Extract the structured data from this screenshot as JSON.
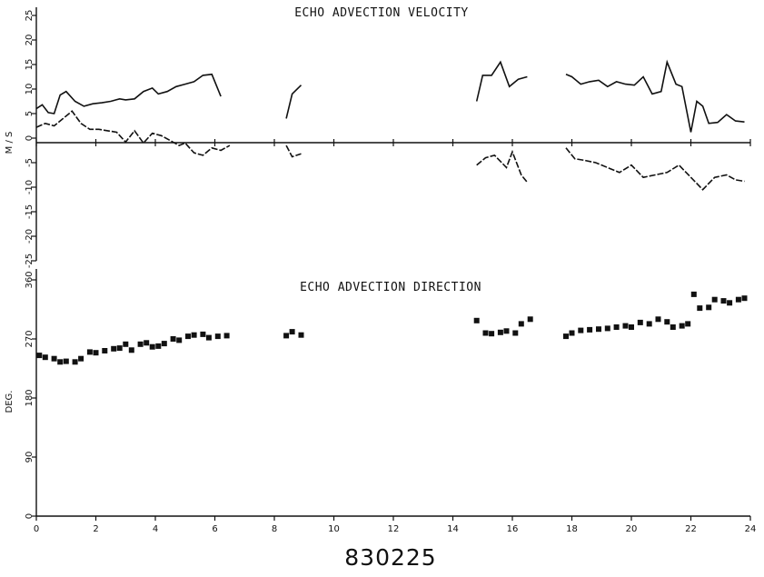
{
  "chart_data": [
    {
      "type": "line",
      "title": "ECHO ADVECTION VELOCITY",
      "xlabel": "830225",
      "ylabel": "M / S",
      "xlim": [
        0,
        24
      ],
      "ylim": [
        -25,
        25
      ],
      "x_ticks": [
        "0",
        "2",
        "4",
        "6",
        "8",
        "10",
        "12",
        "14",
        "16",
        "18",
        "20",
        "22",
        "24"
      ],
      "y_ticks": [
        "-25",
        "-20",
        "-15",
        "-10",
        "-5",
        "0",
        "5",
        "10",
        "15",
        "20",
        "25"
      ],
      "grid": false,
      "legend": "none",
      "series": [
        {
          "style": "solid",
          "segments": [
            [
              [
                0.0,
                6.0
              ],
              [
                0.2,
                6.8
              ],
              [
                0.4,
                5.2
              ],
              [
                0.6,
                5.0
              ],
              [
                0.8,
                8.8
              ],
              [
                1.0,
                9.5
              ],
              [
                1.3,
                7.5
              ],
              [
                1.6,
                6.5
              ],
              [
                1.9,
                7.0
              ],
              [
                2.2,
                7.2
              ],
              [
                2.5,
                7.5
              ],
              [
                2.8,
                8.0
              ],
              [
                3.0,
                7.8
              ],
              [
                3.3,
                8.0
              ],
              [
                3.6,
                9.5
              ],
              [
                3.9,
                10.2
              ],
              [
                4.1,
                9.0
              ],
              [
                4.4,
                9.5
              ],
              [
                4.7,
                10.5
              ],
              [
                5.0,
                11.0
              ],
              [
                5.3,
                11.5
              ],
              [
                5.6,
                12.8
              ],
              [
                5.9,
                13.0
              ],
              [
                6.2,
                8.5
              ]
            ],
            [
              [
                8.4,
                4.0
              ],
              [
                8.6,
                9.0
              ],
              [
                8.9,
                10.8
              ]
            ],
            [
              [
                14.8,
                7.5
              ],
              [
                15.0,
                12.8
              ],
              [
                15.3,
                12.8
              ],
              [
                15.6,
                15.5
              ],
              [
                15.9,
                10.5
              ],
              [
                16.2,
                12.0
              ],
              [
                16.5,
                12.5
              ]
            ],
            [
              [
                17.8,
                13.0
              ],
              [
                18.0,
                12.5
              ],
              [
                18.3,
                11.0
              ],
              [
                18.6,
                11.5
              ],
              [
                18.9,
                11.8
              ],
              [
                19.2,
                10.5
              ],
              [
                19.5,
                11.5
              ],
              [
                19.8,
                11.0
              ],
              [
                20.1,
                10.8
              ],
              [
                20.4,
                12.5
              ],
              [
                20.7,
                9.0
              ],
              [
                21.0,
                9.5
              ],
              [
                21.2,
                15.5
              ],
              [
                21.5,
                11.0
              ],
              [
                21.7,
                10.5
              ],
              [
                22.0,
                1.2
              ],
              [
                22.2,
                7.5
              ],
              [
                22.4,
                6.5
              ],
              [
                22.6,
                3.0
              ],
              [
                22.9,
                3.2
              ],
              [
                23.2,
                4.8
              ],
              [
                23.5,
                3.5
              ],
              [
                23.8,
                3.3
              ]
            ]
          ]
        },
        {
          "style": "dashed",
          "segments": [
            [
              [
                0.0,
                2.2
              ],
              [
                0.3,
                3.0
              ],
              [
                0.6,
                2.5
              ],
              [
                0.9,
                4.0
              ],
              [
                1.2,
                5.5
              ],
              [
                1.5,
                3.0
              ],
              [
                1.8,
                1.8
              ],
              [
                2.1,
                1.8
              ],
              [
                2.4,
                1.5
              ],
              [
                2.7,
                1.2
              ],
              [
                3.0,
                -0.8
              ],
              [
                3.3,
                1.5
              ],
              [
                3.6,
                -1.0
              ],
              [
                3.9,
                1.0
              ],
              [
                4.2,
                0.5
              ],
              [
                4.5,
                -0.5
              ],
              [
                4.8,
                -1.5
              ],
              [
                5.0,
                -1.0
              ],
              [
                5.3,
                -3.0
              ],
              [
                5.6,
                -3.5
              ],
              [
                5.9,
                -2.0
              ],
              [
                6.2,
                -2.5
              ],
              [
                6.5,
                -1.5
              ]
            ],
            [
              [
                8.4,
                -1.5
              ],
              [
                8.6,
                -3.8
              ],
              [
                8.9,
                -3.2
              ]
            ],
            [
              [
                14.8,
                -5.5
              ],
              [
                15.1,
                -4.0
              ],
              [
                15.4,
                -3.5
              ],
              [
                15.8,
                -6.0
              ],
              [
                16.0,
                -2.8
              ],
              [
                16.3,
                -7.5
              ],
              [
                16.5,
                -9.0
              ]
            ],
            [
              [
                17.8,
                -2.0
              ],
              [
                18.1,
                -4.2
              ],
              [
                18.4,
                -4.5
              ],
              [
                18.8,
                -5.0
              ],
              [
                19.2,
                -6.0
              ],
              [
                19.6,
                -7.0
              ],
              [
                20.0,
                -5.5
              ],
              [
                20.4,
                -8.0
              ],
              [
                20.8,
                -7.5
              ],
              [
                21.2,
                -7.0
              ],
              [
                21.6,
                -5.5
              ],
              [
                22.0,
                -8.0
              ],
              [
                22.4,
                -10.5
              ],
              [
                22.8,
                -8.0
              ],
              [
                23.2,
                -7.5
              ],
              [
                23.5,
                -8.5
              ],
              [
                23.8,
                -8.8
              ]
            ]
          ]
        }
      ]
    },
    {
      "type": "scatter",
      "title": "ECHO ADVECTION DIRECTION",
      "xlabel": "830225",
      "ylabel": "DEG.",
      "xlim": [
        0,
        24
      ],
      "ylim": [
        0,
        360
      ],
      "x_ticks": [
        "0",
        "2",
        "4",
        "6",
        "8",
        "10",
        "12",
        "14",
        "16",
        "18",
        "20",
        "22",
        "24"
      ],
      "y_ticks": [
        "0",
        "90",
        "180",
        "270",
        "360"
      ],
      "grid": false,
      "legend": "none",
      "points": [
        [
          0.1,
          245
        ],
        [
          0.3,
          242
        ],
        [
          0.6,
          240
        ],
        [
          0.8,
          235
        ],
        [
          1.0,
          236
        ],
        [
          1.3,
          235
        ],
        [
          1.5,
          240
        ],
        [
          1.8,
          250
        ],
        [
          2.0,
          249
        ],
        [
          2.3,
          252
        ],
        [
          2.6,
          255
        ],
        [
          2.8,
          256
        ],
        [
          3.0,
          262
        ],
        [
          3.2,
          253
        ],
        [
          3.5,
          262
        ],
        [
          3.7,
          264
        ],
        [
          3.9,
          258
        ],
        [
          4.1,
          259
        ],
        [
          4.3,
          263
        ],
        [
          4.6,
          270
        ],
        [
          4.8,
          268
        ],
        [
          5.1,
          274
        ],
        [
          5.3,
          276
        ],
        [
          5.6,
          277
        ],
        [
          5.8,
          272
        ],
        [
          6.1,
          274
        ],
        [
          6.4,
          275
        ],
        [
          8.4,
          275
        ],
        [
          8.6,
          281
        ],
        [
          8.9,
          276
        ],
        [
          14.8,
          298
        ],
        [
          15.1,
          279
        ],
        [
          15.3,
          278
        ],
        [
          15.6,
          280
        ],
        [
          15.8,
          282
        ],
        [
          16.1,
          279
        ],
        [
          16.3,
          293
        ],
        [
          16.6,
          300
        ],
        [
          17.8,
          274
        ],
        [
          18.0,
          279
        ],
        [
          18.3,
          283
        ],
        [
          18.6,
          284
        ],
        [
          18.9,
          285
        ],
        [
          19.2,
          286
        ],
        [
          19.5,
          288
        ],
        [
          19.8,
          290
        ],
        [
          20.0,
          288
        ],
        [
          20.3,
          295
        ],
        [
          20.6,
          293
        ],
        [
          20.9,
          300
        ],
        [
          21.2,
          296
        ],
        [
          21.4,
          288
        ],
        [
          21.7,
          290
        ],
        [
          21.9,
          293
        ],
        [
          22.1,
          338
        ],
        [
          22.3,
          317
        ],
        [
          22.6,
          318
        ],
        [
          22.8,
          330
        ],
        [
          23.1,
          328
        ],
        [
          23.3,
          325
        ],
        [
          23.6,
          330
        ],
        [
          23.8,
          332
        ]
      ]
    }
  ]
}
